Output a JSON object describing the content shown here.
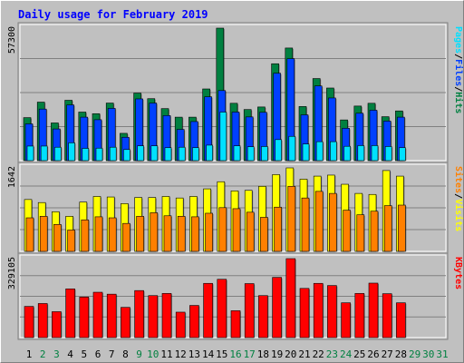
{
  "title": "Daily usage for February 2019",
  "colors": {
    "title": "#0000ff",
    "hits": "#008040",
    "files": "#0040ff",
    "pages": "#00e0ff",
    "sites": "#ffff00",
    "visits": "#ff8000",
    "kbytes": "#ff0000",
    "weekend_label": "#008040",
    "weekday_label": "#000000",
    "out_of_month_label": "#008040"
  },
  "chart_data": [
    {
      "type": "bar",
      "title": "Daily usage for February 2019",
      "panel": "hits-files-pages",
      "ymax_label": "57300",
      "ymax": 57300,
      "legend": [
        {
          "label": "Pages",
          "color": "#00e0ff"
        },
        {
          "sep": "/"
        },
        {
          "label": "Files",
          "color": "#0040ff"
        },
        {
          "sep": "/"
        },
        {
          "label": "Hits",
          "color": "#008040"
        }
      ],
      "categories": [
        "1",
        "2",
        "3",
        "4",
        "5",
        "6",
        "7",
        "8",
        "9",
        "10",
        "11",
        "12",
        "13",
        "14",
        "15",
        "16",
        "17",
        "18",
        "19",
        "20",
        "21",
        "22",
        "23",
        "24",
        "25",
        "26",
        "27",
        "28",
        "29",
        "30",
        "31"
      ],
      "series": [
        {
          "name": "Hits",
          "values": [
            18600,
            25300,
            16300,
            26100,
            21000,
            20300,
            24900,
            11800,
            29200,
            26800,
            22500,
            18800,
            18800,
            31000,
            57300,
            24800,
            22100,
            23200,
            41900,
            48700,
            23400,
            35500,
            31400,
            17600,
            23600,
            24800,
            19000,
            21500,
            0,
            0,
            0
          ]
        },
        {
          "name": "Files",
          "values": [
            15900,
            22300,
            13700,
            24100,
            18800,
            17700,
            22600,
            10100,
            26700,
            24900,
            19500,
            13500,
            16900,
            27600,
            30300,
            21000,
            18900,
            20900,
            37800,
            44100,
            19800,
            32300,
            27100,
            14000,
            20500,
            21800,
            17100,
            18800,
            0,
            0,
            0
          ]
        },
        {
          "name": "Pages",
          "values": [
            6300,
            6300,
            5800,
            7700,
            5300,
            5400,
            5800,
            4800,
            6400,
            6400,
            5600,
            5800,
            5600,
            6700,
            21000,
            6400,
            6000,
            6100,
            9100,
            10500,
            7200,
            8200,
            8200,
            6200,
            6500,
            6500,
            6100,
            5600,
            0,
            0,
            0
          ]
        }
      ]
    },
    {
      "type": "bar",
      "panel": "visits-sites",
      "ymax_label": "1642",
      "ymax": 1642,
      "legend": [
        {
          "label": "Sites",
          "color": "#ff8000"
        },
        {
          "sep": "/"
        },
        {
          "label": "Visits",
          "color": "#ffff00"
        }
      ],
      "categories": [
        "1",
        "2",
        "3",
        "4",
        "5",
        "6",
        "7",
        "8",
        "9",
        "10",
        "11",
        "12",
        "13",
        "14",
        "15",
        "16",
        "17",
        "18",
        "19",
        "20",
        "21",
        "22",
        "23",
        "24",
        "25",
        "26",
        "27",
        "28",
        "29",
        "30",
        "31"
      ],
      "series": [
        {
          "name": "Visits",
          "values": [
            1020,
            960,
            780,
            690,
            970,
            1080,
            1070,
            940,
            1060,
            1060,
            1080,
            1050,
            1080,
            1230,
            1370,
            1190,
            1200,
            1280,
            1510,
            1642,
            1420,
            1480,
            1500,
            1320,
            1140,
            1120,
            1590,
            1480,
            0,
            0,
            0
          ]
        },
        {
          "name": "Sites",
          "values": [
            660,
            690,
            530,
            420,
            620,
            680,
            660,
            550,
            690,
            760,
            700,
            690,
            680,
            750,
            860,
            840,
            770,
            670,
            870,
            1280,
            1050,
            1180,
            1140,
            810,
            720,
            790,
            900,
            910,
            0,
            0,
            0
          ]
        }
      ]
    },
    {
      "type": "bar",
      "panel": "kbytes",
      "ymax_label": "329105",
      "ymax": 329105,
      "legend": [
        {
          "label": "KBytes",
          "color": "#ff0000"
        }
      ],
      "categories": [
        "1",
        "2",
        "3",
        "4",
        "5",
        "6",
        "7",
        "8",
        "9",
        "10",
        "11",
        "12",
        "13",
        "14",
        "15",
        "16",
        "17",
        "18",
        "19",
        "20",
        "21",
        "22",
        "23",
        "24",
        "25",
        "26",
        "27",
        "28",
        "29",
        "30",
        "31"
      ],
      "series": [
        {
          "name": "KBytes",
          "values": [
            130000,
            142000,
            108000,
            203000,
            169000,
            189000,
            181000,
            126000,
            196000,
            175000,
            184000,
            106000,
            134000,
            226000,
            243000,
            112000,
            225000,
            175000,
            251000,
            329105,
            205000,
            226000,
            217000,
            145000,
            184000,
            227000,
            183000,
            145000,
            0,
            0,
            0
          ]
        }
      ]
    }
  ],
  "x_labels": [
    {
      "text": "1",
      "kind": "weekday"
    },
    {
      "text": "2",
      "kind": "weekend"
    },
    {
      "text": "3",
      "kind": "weekend"
    },
    {
      "text": "4",
      "kind": "weekday"
    },
    {
      "text": "5",
      "kind": "weekday"
    },
    {
      "text": "6",
      "kind": "weekday"
    },
    {
      "text": "7",
      "kind": "weekday"
    },
    {
      "text": "8",
      "kind": "weekday"
    },
    {
      "text": "9",
      "kind": "weekend"
    },
    {
      "text": "10",
      "kind": "weekend"
    },
    {
      "text": "11",
      "kind": "weekday"
    },
    {
      "text": "12",
      "kind": "weekday"
    },
    {
      "text": "13",
      "kind": "weekday"
    },
    {
      "text": "14",
      "kind": "weekday"
    },
    {
      "text": "15",
      "kind": "weekday"
    },
    {
      "text": "16",
      "kind": "weekend"
    },
    {
      "text": "17",
      "kind": "weekend"
    },
    {
      "text": "18",
      "kind": "weekday"
    },
    {
      "text": "19",
      "kind": "weekday"
    },
    {
      "text": "20",
      "kind": "weekday"
    },
    {
      "text": "21",
      "kind": "weekday"
    },
    {
      "text": "22",
      "kind": "weekday"
    },
    {
      "text": "23",
      "kind": "weekend"
    },
    {
      "text": "24",
      "kind": "weekend"
    },
    {
      "text": "25",
      "kind": "weekday"
    },
    {
      "text": "26",
      "kind": "weekday"
    },
    {
      "text": "27",
      "kind": "weekday"
    },
    {
      "text": "28",
      "kind": "weekday"
    },
    {
      "text": "29",
      "kind": "outside"
    },
    {
      "text": "30",
      "kind": "outside"
    },
    {
      "text": "31",
      "kind": "outside"
    }
  ]
}
